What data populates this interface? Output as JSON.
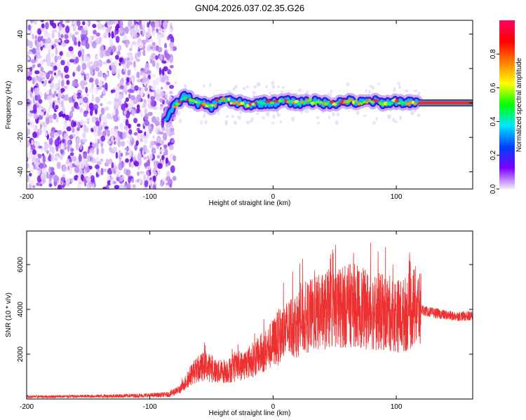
{
  "title": "GN04.2026.037.02.35.G26",
  "chart_data": [
    {
      "type": "heatmap",
      "xlabel": "Height of straight line (km)",
      "ylabel": "Frequency (Hz)",
      "xlim": [
        -200,
        162
      ],
      "ylim": [
        -50,
        48
      ],
      "xticks": [
        -200,
        -100,
        0,
        100
      ],
      "yticks": [
        -40,
        -20,
        0,
        20,
        40
      ],
      "noise_region_x": [
        -200,
        -80
      ],
      "signal_track": {
        "x": [
          -88,
          -80,
          -72,
          -62,
          -50,
          -42,
          -35,
          -28,
          -20,
          -10,
          0,
          10,
          20,
          30,
          40,
          50,
          60,
          70,
          80,
          90,
          100,
          110,
          118,
          162
        ],
        "y": [
          -10,
          -2,
          4,
          0,
          -2,
          2,
          1,
          0,
          -1,
          0,
          0,
          1,
          0,
          1,
          0,
          0,
          1,
          0,
          1,
          0,
          1,
          0,
          0,
          0
        ]
      },
      "colorbar": {
        "label": "Normalized spectral amplitude",
        "range": [
          0,
          1
        ],
        "ticks": [
          0.0,
          0.2,
          0.4,
          0.6,
          0.8
        ],
        "tick_labels": [
          "0.0",
          "0.2",
          "0.4",
          "0.6",
          "0.8"
        ],
        "colors": [
          "#f5ecfc",
          "#7a00ff",
          "#0040ff",
          "#00e5ff",
          "#00ff00",
          "#ffff00",
          "#ff8000",
          "#ff0000",
          "#ff0066"
        ]
      }
    },
    {
      "type": "line",
      "xlabel": "Height of straight line (km)",
      "ylabel": "SNR (10 * v/v)",
      "xlim": [
        -200,
        162
      ],
      "ylim": [
        0,
        7500
      ],
      "xticks": [
        -200,
        -100,
        0,
        100
      ],
      "yticks": [
        2000,
        4000,
        6000
      ],
      "color": "#ee3030",
      "series": [
        {
          "name": "SNR",
          "x": [
            -200,
            -150,
            -100,
            -85,
            -75,
            -65,
            -55,
            -45,
            -35,
            -25,
            -15,
            -5,
            5,
            15,
            25,
            35,
            45,
            55,
            65,
            75,
            85,
            95,
            105,
            115,
            125,
            135,
            145,
            162
          ],
          "y": [
            100,
            120,
            160,
            200,
            450,
            1200,
            1500,
            1200,
            1300,
            1500,
            1800,
            2200,
            2800,
            3200,
            3600,
            3800,
            4000,
            4100,
            4200,
            4000,
            3900,
            3800,
            3700,
            4100,
            3900,
            3800,
            3700,
            3700
          ]
        }
      ]
    }
  ]
}
